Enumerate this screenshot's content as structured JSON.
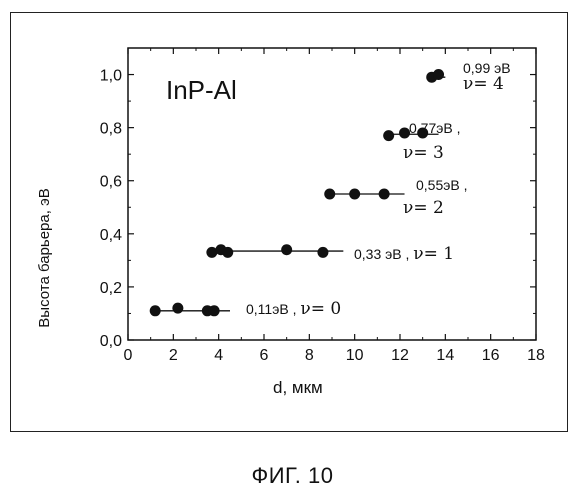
{
  "figure": {
    "caption": "ФИГ. 10"
  },
  "chart_data": {
    "type": "scatter",
    "title": "InP-Al",
    "xlabel": "d,  мкм",
    "ylabel": "Высота барьера, эВ",
    "xlim": [
      0,
      18
    ],
    "ylim": [
      0,
      1.1
    ],
    "x_ticks": [
      "0",
      "2",
      "4",
      "6",
      "8",
      "10",
      "12",
      "14",
      "16",
      "18"
    ],
    "y_ticks": [
      "0,0",
      "0,2",
      "0,4",
      "0,6",
      "0,8",
      "1,0"
    ],
    "grid": false,
    "series": [
      {
        "level": 0,
        "points": [
          [
            1.2,
            0.11
          ],
          [
            2.2,
            0.12
          ],
          [
            3.5,
            0.11
          ],
          [
            3.8,
            0.11
          ]
        ],
        "line_x": [
          1.0,
          4.5
        ],
        "line_y": 0.11,
        "label_value": "0,11эВ",
        "label_nu": "ν= 0"
      },
      {
        "level": 1,
        "points": [
          [
            3.7,
            0.33
          ],
          [
            4.1,
            0.34
          ],
          [
            4.4,
            0.33
          ],
          [
            7.0,
            0.34
          ],
          [
            8.6,
            0.33
          ]
        ],
        "line_x": [
          3.5,
          9.5
        ],
        "line_y": 0.335,
        "label_value": "0,33 эВ",
        "label_nu": "ν= 1"
      },
      {
        "level": 2,
        "points": [
          [
            8.9,
            0.55
          ],
          [
            10.0,
            0.55
          ],
          [
            11.3,
            0.55
          ]
        ],
        "line_x": [
          8.7,
          12.2
        ],
        "line_y": 0.55,
        "label_value": "0,55эВ",
        "label_nu": "ν= 2"
      },
      {
        "level": 3,
        "points": [
          [
            11.5,
            0.77
          ],
          [
            12.2,
            0.78
          ],
          [
            13.0,
            0.78
          ]
        ],
        "line_x": [
          11.5,
          13.7
        ],
        "line_y": 0.775,
        "label_value": "0,77эВ",
        "label_nu": "ν= 3"
      },
      {
        "level": 4,
        "points": [
          [
            13.4,
            0.99
          ],
          [
            13.7,
            1.0
          ]
        ],
        "line_x": [
          13.3,
          14.0
        ],
        "line_y": 0.99,
        "label_value": "0,99 эВ",
        "label_nu": "ν= 4"
      }
    ]
  }
}
